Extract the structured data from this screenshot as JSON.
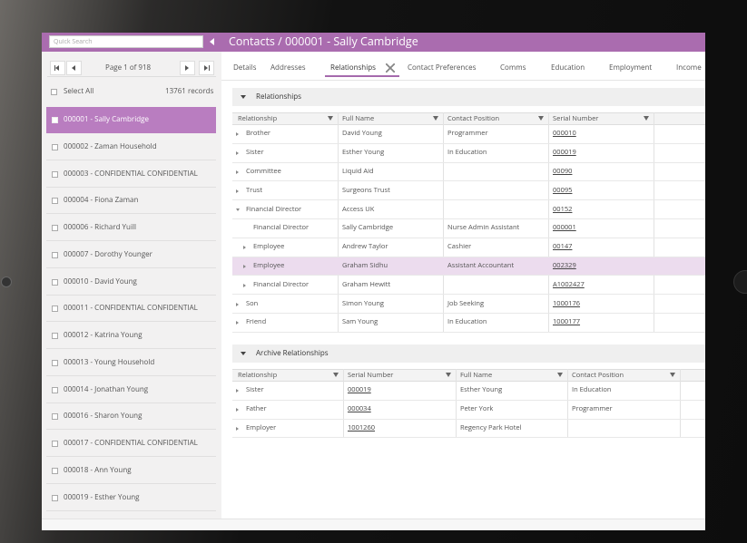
{
  "sidebar": {
    "search_placeholder": "Quick Search",
    "pager": "Page 1 of 918",
    "select_all": "Select All",
    "record_count": "13761 records",
    "items": [
      "000001 - Sally Cambridge",
      "000002 - Zaman Household",
      "000003 - CONFIDENTIAL CONFIDENTIAL",
      "000004 - Fiona Zaman",
      "000006 - Richard Yuill",
      "000007 - Dorothy Younger",
      "000010 - David Young",
      "000011 - CONFIDENTIAL CONFIDENTIAL",
      "000012 - Katrina Young",
      "000013 - Young Household",
      "000014 - Jonathan Young",
      "000016 - Sharon Young",
      "000017 - CONFIDENTIAL CONFIDENTIAL",
      "000018 - Ann Young",
      "000019 - Esther Young"
    ]
  },
  "header": {
    "title": "Contacts / 000001 - Sally Cambridge"
  },
  "tabs": [
    "Details",
    "Addresses",
    "Relationships",
    "Contact Preferences",
    "Comms",
    "Education",
    "Employment",
    "Income"
  ],
  "relationships": {
    "title": "Relationships",
    "columns": [
      "Relationship",
      "Full Name",
      "Contact Position",
      "Serial Number"
    ],
    "rows": [
      [
        "Brother",
        "David Young",
        "Programmer",
        "000010"
      ],
      [
        "Sister",
        "Esther Young",
        "In Education",
        "000019"
      ],
      [
        "Committee",
        "Liquid Aid",
        null,
        "00090"
      ],
      [
        "Trust",
        "Surgeons Trust",
        null,
        "00095"
      ],
      [
        "Financial Director",
        "Access UK",
        null,
        "00152"
      ],
      [
        "Financial Director",
        "Sally Cambridge",
        "Nurse Admin Assistant",
        "000001"
      ],
      [
        "Employee",
        "Andrew Taylor",
        "Cashier",
        "00147"
      ],
      [
        "Employee",
        "Graham Sidhu",
        "Assistant Accountant",
        "002329"
      ],
      [
        "Financial Director",
        "Graham Hewitt",
        null,
        "A1002427"
      ],
      [
        "Son",
        "Simon Young",
        "Job Seeking",
        "1000176"
      ],
      [
        "Friend",
        "Sam Young",
        "In Education",
        "1000177"
      ]
    ]
  },
  "archive": {
    "title": "Archive Relationships",
    "columns": [
      "Relationship",
      "Serial Number",
      "Full Name",
      "Contact Position"
    ],
    "rows": [
      [
        "Sister",
        "000019",
        "Esther Young",
        "In Education"
      ],
      [
        "Father",
        "000034",
        "Peter York",
        "Programmer"
      ],
      [
        "Employer",
        "1001260",
        "Regency Park Hotel",
        null
      ]
    ]
  }
}
